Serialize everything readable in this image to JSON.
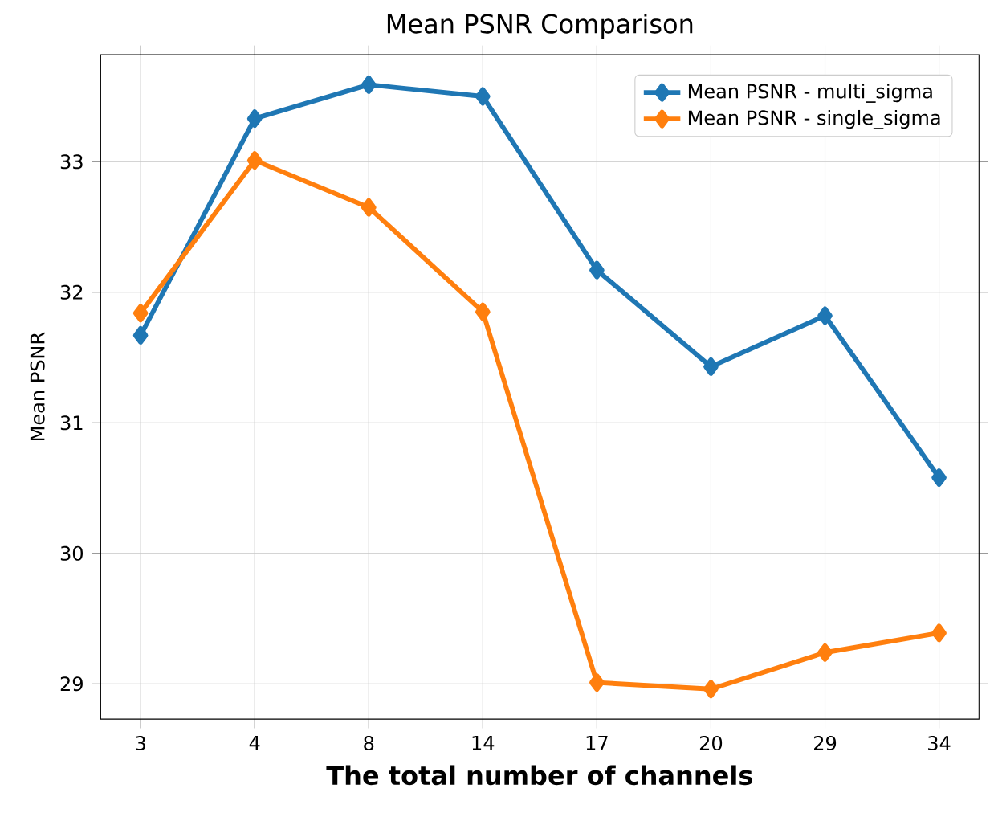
{
  "chart_data": {
    "type": "line",
    "title": "Mean PSNR Comparison",
    "xlabel": "The total number of channels",
    "ylabel": "Mean PSNR",
    "categories": [
      "3",
      "4",
      "8",
      "14",
      "17",
      "20",
      "29",
      "34"
    ],
    "series": [
      {
        "name": "Mean PSNR - multi_sigma",
        "color": "#1f77b4",
        "values": [
          31.67,
          33.33,
          33.59,
          33.5,
          32.17,
          31.43,
          31.82,
          30.58
        ]
      },
      {
        "name": "Mean PSNR - single_sigma",
        "color": "#ff7f0e",
        "values": [
          31.84,
          33.01,
          32.65,
          31.85,
          29.01,
          28.96,
          29.24,
          29.39
        ]
      }
    ],
    "ylim": [
      28.73,
      33.82
    ],
    "yticks": [
      29,
      30,
      31,
      32,
      33
    ],
    "grid": true,
    "legend": "top right",
    "marker": "diamond",
    "line_style": "solid"
  }
}
